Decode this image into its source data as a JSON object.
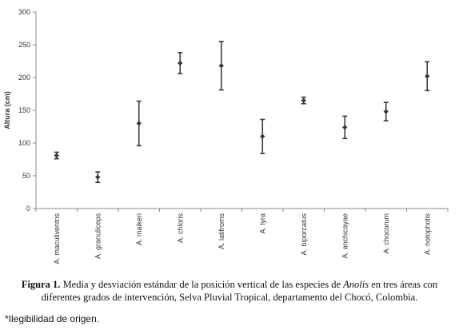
{
  "chart_data": {
    "type": "errorbar",
    "ylabel": "Altura (cm)",
    "xlabel": "",
    "ylim": [
      0,
      300
    ],
    "yticks": [
      0,
      50,
      100,
      150,
      200,
      250,
      300
    ],
    "grid": false,
    "categories": [
      "A. maculiventris",
      "A. granuliceps",
      "A. maikeri",
      "A. chloris",
      "A. latifroms",
      "A. lyra",
      "A. biporcatus",
      "A. anchicayae",
      "A. chocorum",
      "A. notopholis"
    ],
    "series": [
      {
        "means": [
          81,
          48,
          130,
          222,
          218,
          110,
          165,
          124,
          148,
          202
        ],
        "sd": [
          5,
          8,
          34,
          16,
          37,
          26,
          5,
          17,
          14,
          22
        ]
      }
    ],
    "marker_color": "#3a3a3a"
  },
  "caption": {
    "label": "Figura 1.",
    "text_before": " Media y desviación estándar de la posición vertical de las especies de ",
    "genus": "Anolis",
    "text_after": " en tres áreas con diferentes grados de intervención, Selva Pluvial Tropical, departamento del Chocó, Colombia."
  },
  "footnote": "*Ilegibilidad de origen."
}
